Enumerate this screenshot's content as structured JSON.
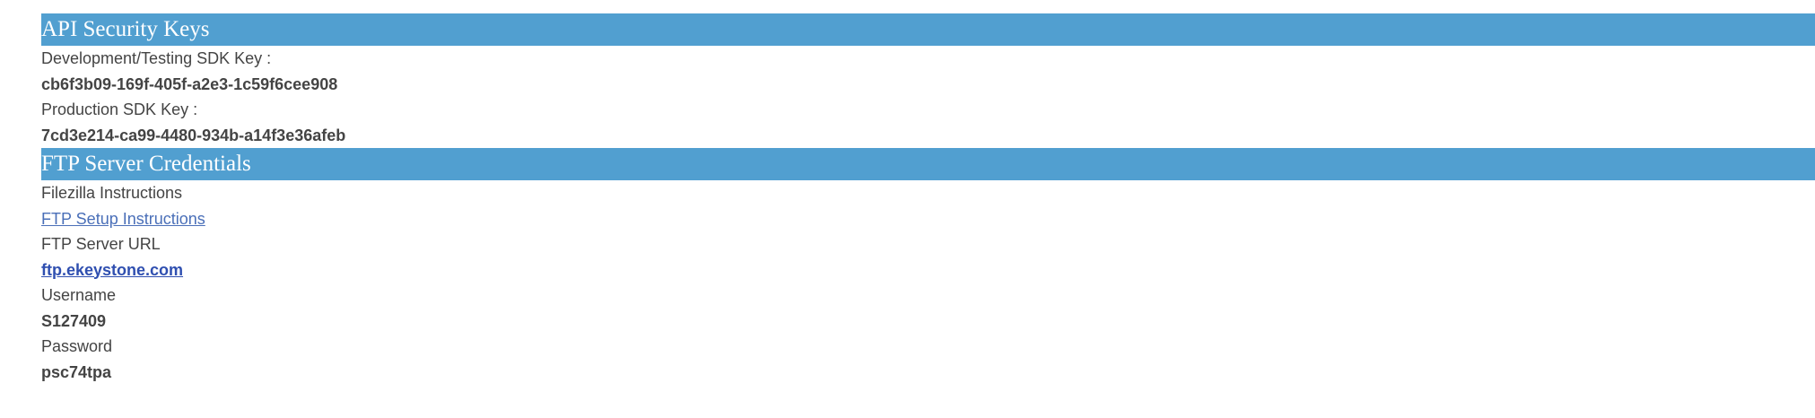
{
  "api_section": {
    "title": "API Security Keys",
    "dev_label": "Development/Testing SDK Key :",
    "dev_value": "cb6f3b09-169f-405f-a2e3-1c59f6cee908",
    "prod_label": "Production SDK Key :",
    "prod_value": "7cd3e214-ca99-4480-934b-a14f3e36afeb"
  },
  "ftp_section": {
    "title": "FTP Server Credentials",
    "filezilla_label": "Filezilla Instructions",
    "setup_link": "FTP Setup Instructions",
    "url_label": "FTP Server URL",
    "url_value": "ftp.ekeystone.com",
    "username_label": "Username",
    "username_value": "S127409",
    "password_label": "Password",
    "password_value": "psc74tpa"
  },
  "colors": {
    "header_bg": "#519fd0",
    "header_text": "#ffffff",
    "body_text": "#444444",
    "link": "#4a6fb8"
  }
}
